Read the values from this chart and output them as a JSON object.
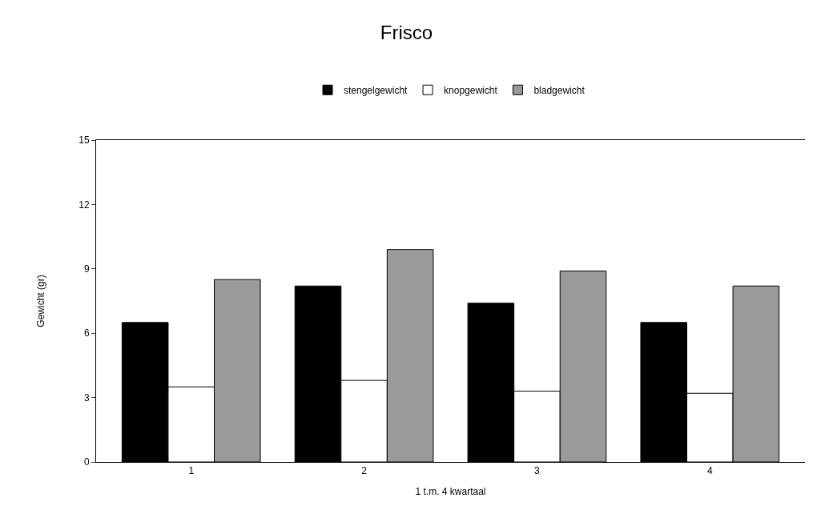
{
  "chart_data": {
    "type": "bar",
    "title": "Frisco",
    "xlabel": "1 t.m. 4 kwartaal",
    "ylabel": "Gewicht (gr)",
    "categories": [
      "1",
      "2",
      "3",
      "4"
    ],
    "series": [
      {
        "name": "stengelgewicht",
        "color": "#000000",
        "values": [
          6.5,
          8.2,
          7.4,
          6.5
        ]
      },
      {
        "name": "knopgewicht",
        "color": "#ffffff",
        "values": [
          3.5,
          3.8,
          3.3,
          3.2
        ]
      },
      {
        "name": "bladgewicht",
        "color": "#9a9a9a",
        "values": [
          8.5,
          9.9,
          8.9,
          8.2
        ]
      }
    ],
    "ylim": [
      0,
      15
    ],
    "yticks": [
      0,
      3,
      6,
      9,
      12,
      15
    ],
    "grid": false,
    "legend": "top"
  }
}
